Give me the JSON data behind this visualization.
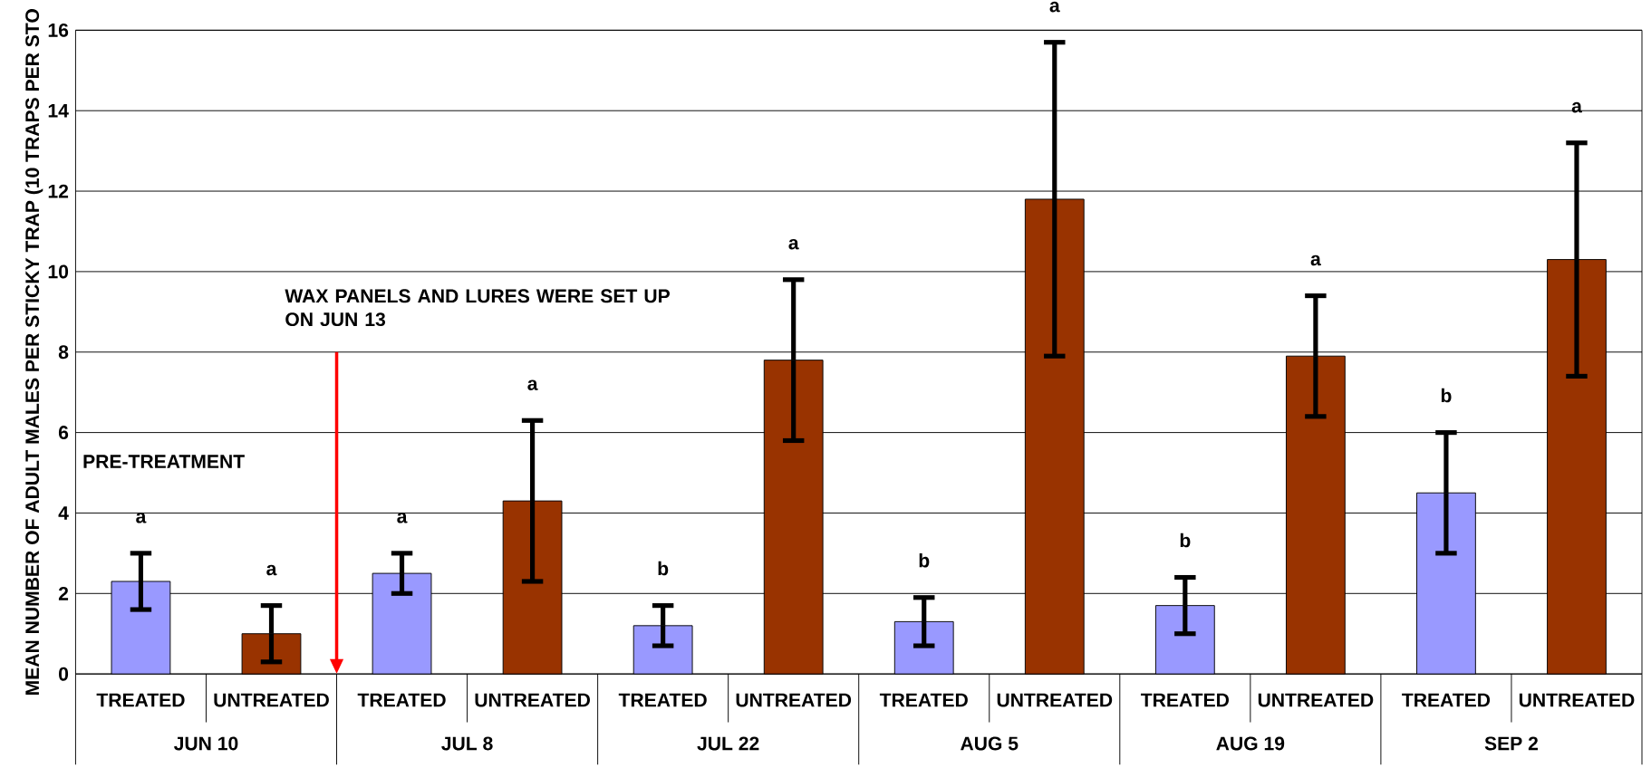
{
  "chart_data": {
    "type": "bar",
    "ylabel": "MEAN NUMBER OF ADULT MALES PER STICKY TRAP (10 TRAPS PER STO",
    "categories": [
      "TREATED",
      "UNTREATED",
      "TREATED",
      "UNTREATED",
      "TREATED",
      "UNTREATED",
      "TREATED",
      "UNTREATED",
      "TREATED",
      "UNTREATED",
      "TREATED",
      "UNTREATED"
    ],
    "values": [
      2.3,
      1.0,
      2.5,
      4.3,
      1.2,
      7.8,
      1.3,
      11.8,
      1.7,
      7.9,
      4.5,
      10.3
    ],
    "errors": [
      [
        1.6,
        3.0
      ],
      [
        0.3,
        1.7
      ],
      [
        2.0,
        3.0
      ],
      [
        2.3,
        6.3
      ],
      [
        0.7,
        1.7
      ],
      [
        5.8,
        9.8
      ],
      [
        0.7,
        1.9
      ],
      [
        7.9,
        15.7
      ],
      [
        1.0,
        2.4
      ],
      [
        6.4,
        9.4
      ],
      [
        3.0,
        6.0
      ],
      [
        7.4,
        13.2
      ]
    ],
    "colors": [
      "#9999ff",
      "#993300",
      "#9999ff",
      "#993300",
      "#9999ff",
      "#993300",
      "#9999ff",
      "#993300",
      "#9999ff",
      "#993300",
      "#9999ff",
      "#993300"
    ],
    "ylim": [
      0,
      16
    ],
    "yticks": [
      0,
      2,
      4,
      6,
      8,
      10,
      12,
      14,
      16
    ],
    "grid": "y",
    "annotations": [
      "a",
      "a",
      "a",
      "a",
      "b",
      "a",
      "b",
      "a",
      "b",
      "a",
      "b",
      "a",
      "JUN 10",
      "JUL 8",
      "JUL 22",
      "AUG 5",
      "AUG 19",
      "SEP 2",
      "PRE-TREATMENT",
      "WAX PANELS AND LURES WERE SET UP ON JUN 13"
    ]
  }
}
